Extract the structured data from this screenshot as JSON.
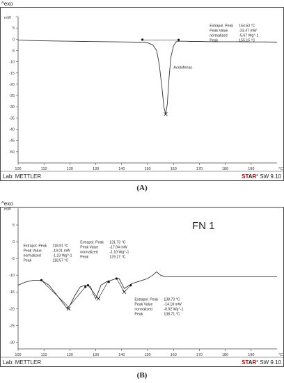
{
  "captions": {
    "a": "(A)",
    "b": "(B)"
  },
  "chart_data": [
    {
      "type": "line",
      "panel": "(A)",
      "corner_label": "^exo",
      "y_unit": "mW",
      "x_unit": "°C",
      "footer_left": "Lab: METTLER",
      "footer_right": {
        "brand_st": "ST",
        "brand_a": "A",
        "brand_r": "R",
        "sup": "e",
        "sw": " SW 9.10"
      },
      "brand_color": "#cc0000",
      "xlim": [
        100,
        200
      ],
      "ylim": [
        -55,
        10
      ],
      "x_ticks": [
        100,
        110,
        120,
        130,
        140,
        150,
        160,
        170,
        180,
        190
      ],
      "y_ticks": [
        10,
        5,
        0,
        -5,
        -10,
        -15,
        -20,
        -25,
        -30,
        -35,
        -40,
        -45,
        -50
      ],
      "series": [
        {
          "name": "",
          "x": [
            100,
            105,
            110,
            115,
            120,
            125,
            130,
            135,
            140,
            145,
            148,
            150,
            152,
            153.5,
            154.5,
            155.5,
            156.3,
            157,
            157.6,
            158.3,
            159,
            160,
            161,
            162,
            164,
            167,
            170,
            175,
            180,
            185,
            190,
            195,
            200
          ],
          "y": [
            -0.4,
            -0.6,
            -0.7,
            -0.8,
            -0.9,
            -1.0,
            -1.05,
            -1.1,
            -1.2,
            -1.3,
            -1.3,
            -1.6,
            -2.5,
            -5,
            -11,
            -21,
            -30,
            -33.3,
            -29,
            -17,
            -8,
            -3,
            -1.2,
            -0.9,
            -0.9,
            -1.0,
            -1.0,
            -1.1,
            -1.1,
            -1.1,
            -1.2,
            -1.2,
            -1.3
          ]
        }
      ],
      "baseline": {
        "x": [
          148,
          162
        ],
        "y": [
          -0.3,
          -0.3
        ]
      },
      "markers": [
        {
          "x": 148,
          "y": -0.2,
          "shape": "dot"
        },
        {
          "x": 162,
          "y": -0.3,
          "shape": "dot"
        },
        {
          "x": 157,
          "y": -33.3,
          "shape": "cross"
        }
      ],
      "annotations": [
        {
          "text": "Acelofenac",
          "x": 160,
          "y": -13
        }
      ],
      "result_blocks": [
        {
          "x": 174,
          "y": 5.5,
          "rows": [
            [
              "Extrapol. Peak",
              "154.53 °C"
            ],
            [
              "Peak Value",
              "-33.47 mW"
            ],
            [
              "  normalized",
              "-5.67 Wg^-1"
            ],
            [
              "Peak",
              "155.15 °C"
            ]
          ]
        }
      ]
    },
    {
      "type": "line",
      "panel": "(B)",
      "corner_label": "^exo",
      "y_unit": "mW",
      "x_unit": "°C",
      "footer_left": "Lab: METTLER",
      "footer_right": {
        "brand_st": "ST",
        "brand_a": "A",
        "brand_r": "R",
        "sup": "e",
        "sw": " SW 9.10"
      },
      "brand_color": "#cc0000",
      "title": "FN 1",
      "xlim": [
        100,
        200
      ],
      "ylim": [
        -32,
        10
      ],
      "x_ticks": [
        100,
        110,
        120,
        130,
        140,
        150,
        160,
        170,
        180,
        190
      ],
      "y_ticks": [
        5,
        0,
        -5,
        -10,
        -15,
        -20,
        -25,
        -30
      ],
      "series": [
        {
          "name": "",
          "x": [
            100,
            103,
            106,
            108,
            109,
            112,
            115,
            118,
            119,
            120,
            122,
            124,
            126,
            127,
            128,
            129,
            130,
            131,
            132,
            134,
            136,
            138,
            139,
            140,
            141,
            142,
            144,
            146,
            148,
            150,
            152,
            153.5,
            155,
            157,
            160,
            165,
            170,
            175,
            180,
            185,
            190,
            195,
            200
          ],
          "y": [
            -13,
            -12,
            -11.5,
            -11.5,
            -11.5,
            -13,
            -16,
            -19,
            -20,
            -19,
            -16,
            -13.5,
            -13,
            -13,
            -13.5,
            -15.5,
            -17,
            -15,
            -13,
            -12,
            -11.5,
            -11,
            -11,
            -12.5,
            -14,
            -13.5,
            -12.5,
            -12,
            -11.5,
            -11,
            -10,
            -9,
            -10,
            -10.5,
            -10.5,
            -10.5,
            -10.5,
            -10.5,
            -10.5,
            -10.5,
            -10.5,
            -10.5,
            -10.5
          ]
        }
      ],
      "baselines": [
        {
          "x": [
            109,
            119.5,
            126
          ],
          "y": [
            -11.5,
            -19.5,
            -13.5
          ]
        },
        {
          "x": [
            127,
            131,
            135
          ],
          "y": [
            -13,
            -17,
            -11.5
          ]
        },
        {
          "x": [
            138,
            141,
            143.5
          ],
          "y": [
            -11,
            -15,
            -13
          ]
        }
      ],
      "markers": [
        {
          "x": 109,
          "y": -11.5,
          "shape": "dot"
        },
        {
          "x": 119.5,
          "y": -20,
          "shape": "cross"
        },
        {
          "x": 126,
          "y": -13.5,
          "shape": "dot"
        },
        {
          "x": 127,
          "y": -13,
          "shape": "dot"
        },
        {
          "x": 131,
          "y": -17,
          "shape": "cross"
        },
        {
          "x": 135,
          "y": -12,
          "shape": "dot"
        },
        {
          "x": 138,
          "y": -11,
          "shape": "dot"
        },
        {
          "x": 141,
          "y": -15,
          "shape": "cross"
        },
        {
          "x": 143.5,
          "y": -13,
          "shape": "dot"
        }
      ],
      "result_blocks": [
        {
          "x": 102,
          "y": -1.5,
          "rows": [
            [
              "Extrapol. Peak",
              "118.91 °C"
            ],
            [
              "Peak Value",
              "-19.01 mW"
            ],
            [
              "  normalized",
              "-1.23 Wg^-1"
            ],
            [
              "Peak",
              "118.57 °C"
            ]
          ]
        },
        {
          "x": 124,
          "y": -0.5,
          "rows": [
            [
              "Extrapol. Peak",
              "131.73 °C"
            ],
            [
              "Peak Value",
              "-17.04 mW"
            ],
            [
              "  normalized",
              "-1.10 Wg^-1"
            ],
            [
              "Peak",
              "129.27 °C"
            ]
          ]
        },
        {
          "x": 145,
          "y": -17.5,
          "rows": [
            [
              "Extrapol. Peak",
              "138.73 °C"
            ],
            [
              "Peak Value",
              "-14.18 mW"
            ],
            [
              "  normalized",
              "-0.92 Wg^-1"
            ],
            [
              "Peak",
              "138.71 °C"
            ]
          ]
        }
      ]
    }
  ]
}
